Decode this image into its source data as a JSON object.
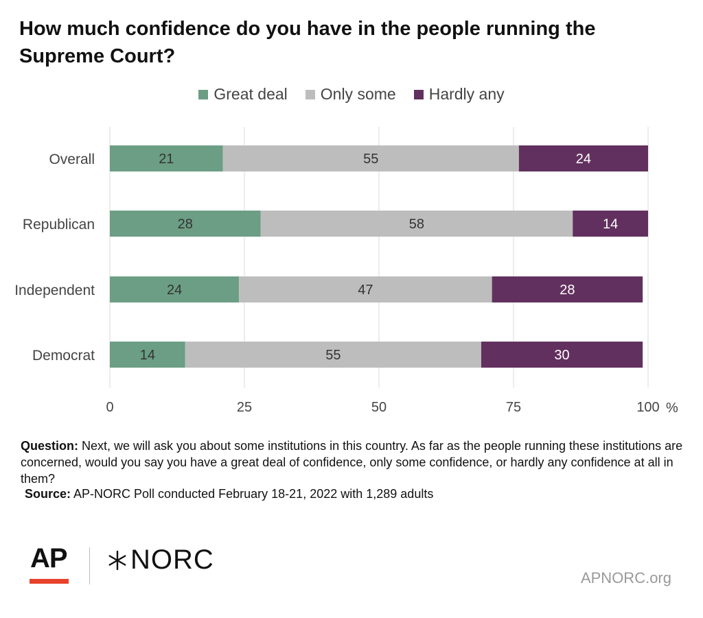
{
  "title": "How much confidence do you have in the people running the Supreme Court?",
  "legend": [
    {
      "label": "Great deal",
      "color": "#6b9e84"
    },
    {
      "label": "Only some",
      "color": "#bdbdbd"
    },
    {
      "label": "Hardly any",
      "color": "#62305e"
    }
  ],
  "chart_data": {
    "type": "bar",
    "orientation": "horizontal",
    "stacked": true,
    "categories": [
      "Overall",
      "Republican",
      "Independent",
      "Democrat"
    ],
    "series": [
      {
        "name": "Great deal",
        "color": "#6b9e84",
        "values": [
          21,
          28,
          24,
          14
        ]
      },
      {
        "name": "Only some",
        "color": "#bdbdbd",
        "values": [
          55,
          58,
          47,
          55
        ]
      },
      {
        "name": "Hardly any",
        "color": "#62305e",
        "values": [
          24,
          14,
          28,
          30
        ]
      }
    ],
    "xlim": [
      0,
      100
    ],
    "xticks": [
      0,
      25,
      50,
      75,
      100
    ],
    "x_unit": "%",
    "grid": "vertical",
    "legend_position": "top"
  },
  "footnote": {
    "question_label": "Question:",
    "question_text": " Next, we will ask you about some institutions in this country. As far as the people running these institutions are concerned, would you say you have a great deal of confidence, only some confidence, or hardly any confidence at all in them?",
    "source_label": "Source:",
    "source_text": " AP-NORC Poll conducted February 18-21, 2022 with 1,289 adults"
  },
  "logos": {
    "ap": "AP",
    "norc": "NORC"
  },
  "site_url": "APNORC.org"
}
